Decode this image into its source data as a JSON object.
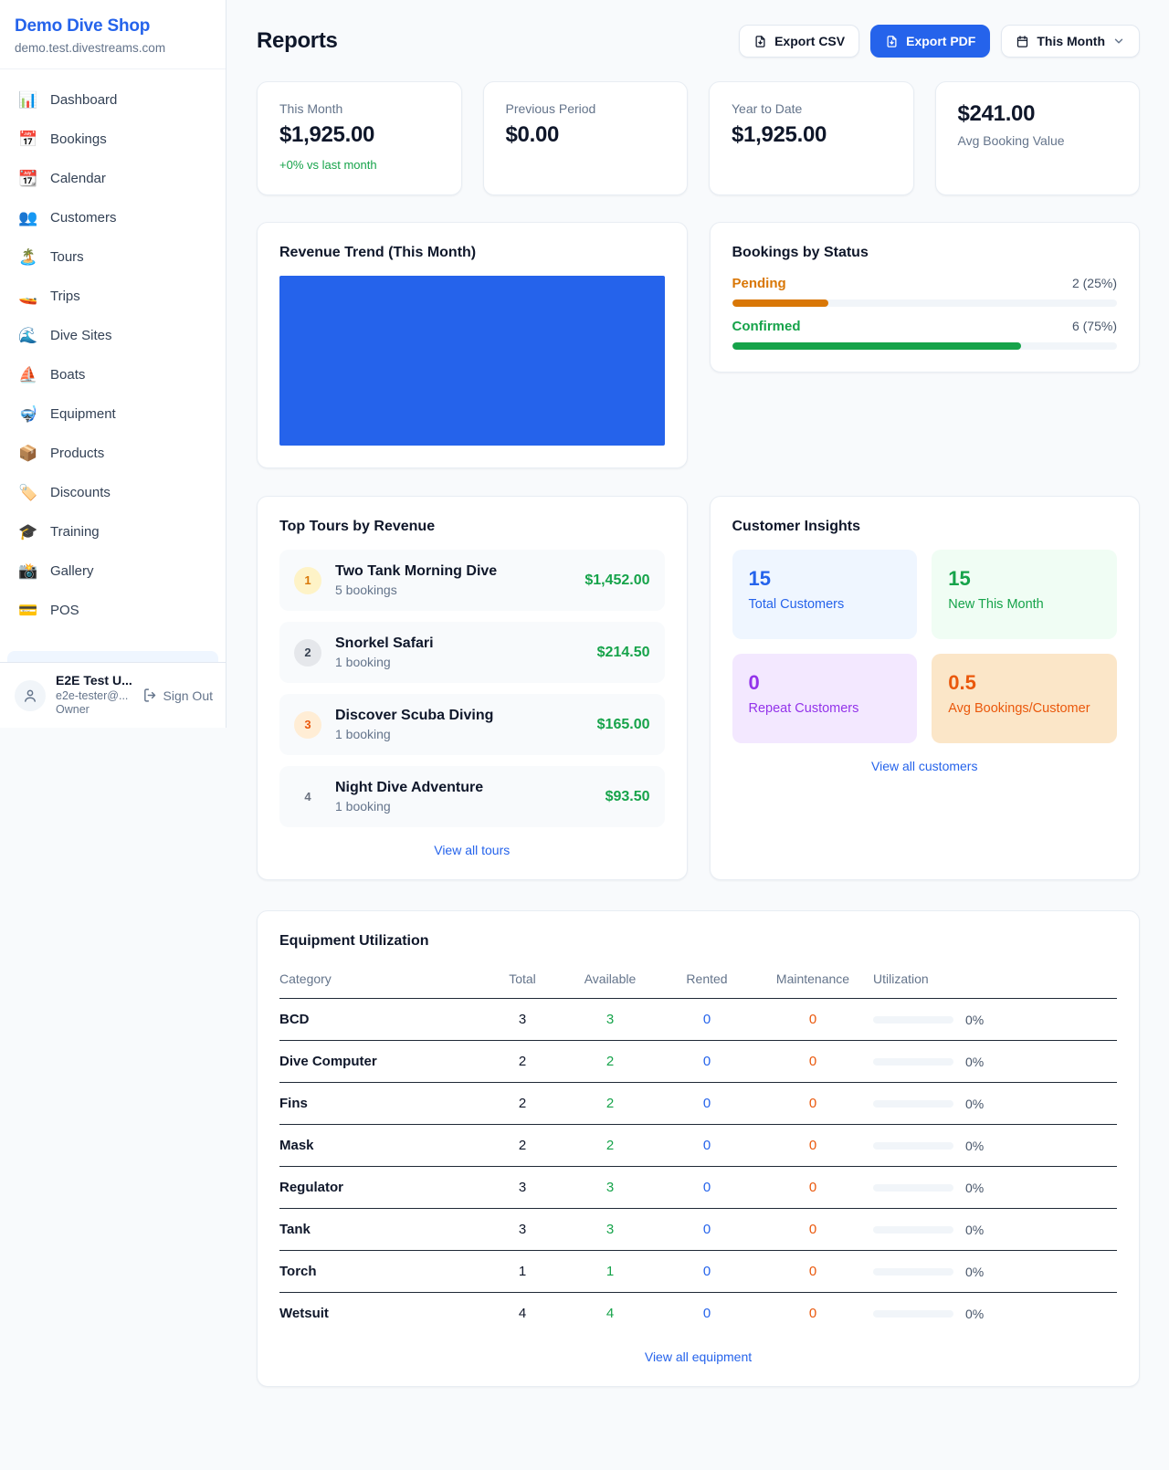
{
  "colors": {
    "accent_blue": "#2563eb",
    "green": "#16a34a",
    "amber": "#d97706",
    "deep_orange": "#ea580c",
    "purple": "#9333ea"
  },
  "sidebar": {
    "shop_name": "Demo Dive Shop",
    "shop_domain": "demo.test.divestreams.com",
    "items": [
      {
        "icon": "📊",
        "label": "Dashboard"
      },
      {
        "icon": "📅",
        "label": "Bookings"
      },
      {
        "icon": "📆",
        "label": "Calendar"
      },
      {
        "icon": "👥",
        "label": "Customers"
      },
      {
        "icon": "🏝️",
        "label": "Tours"
      },
      {
        "icon": "🚤",
        "label": "Trips"
      },
      {
        "icon": "🌊",
        "label": "Dive Sites"
      },
      {
        "icon": "⛵",
        "label": "Boats"
      },
      {
        "icon": "🤿",
        "label": "Equipment"
      },
      {
        "icon": "📦",
        "label": "Products"
      },
      {
        "icon": "🏷️",
        "label": "Discounts"
      },
      {
        "icon": "🎓",
        "label": "Training"
      },
      {
        "icon": "📸",
        "label": "Gallery"
      },
      {
        "icon": "💳",
        "label": "POS"
      }
    ],
    "user": {
      "name": "E2E Test U...",
      "email": "e2e-tester@...",
      "role": "Owner",
      "sign_out_label": "Sign Out"
    }
  },
  "header": {
    "title": "Reports",
    "export_csv_label": "Export CSV",
    "export_pdf_label": "Export PDF",
    "period_label": "This Month"
  },
  "stats": [
    {
      "label": "This Month",
      "value": "$1,925.00",
      "delta": "+0% vs last month",
      "layout": "label-first"
    },
    {
      "label": "Previous Period",
      "value": "$0.00",
      "layout": "label-first"
    },
    {
      "label": "Year to Date",
      "value": "$1,925.00",
      "layout": "label-first"
    },
    {
      "label": "Avg Booking Value",
      "value": "$241.00",
      "layout": "value-first"
    }
  ],
  "revenue_trend": {
    "title": "Revenue Trend (This Month)",
    "fill_color": "#2563eb"
  },
  "bookings_status": {
    "title": "Bookings by Status",
    "rows": [
      {
        "label": "Pending",
        "count_text": "2 (25%)",
        "pct": 25,
        "color": "#d97706"
      },
      {
        "label": "Confirmed",
        "count_text": "6 (75%)",
        "pct": 75,
        "color": "#16a34a"
      }
    ]
  },
  "top_tours": {
    "title": "Top Tours by Revenue",
    "link_label": "View all tours",
    "rows": [
      {
        "rank": "1",
        "name": "Two Tank Morning Dive",
        "bookings": "5 bookings",
        "amount": "$1,452.00",
        "badge_bg": "#fef3c7",
        "badge_color": "#d97706"
      },
      {
        "rank": "2",
        "name": "Snorkel Safari",
        "bookings": "1 booking",
        "amount": "$214.50",
        "badge_bg": "#e5e7eb",
        "badge_color": "#374151"
      },
      {
        "rank": "3",
        "name": "Discover Scuba Diving",
        "bookings": "1 booking",
        "amount": "$165.00",
        "badge_bg": "#ffedd5",
        "badge_color": "#ea580c"
      },
      {
        "rank": "4",
        "name": "Night Dive Adventure",
        "bookings": "1 booking",
        "amount": "$93.50",
        "badge_bg": "transparent",
        "badge_color": "#6b7280"
      }
    ]
  },
  "customer_insights": {
    "title": "Customer Insights",
    "link_label": "View all customers",
    "tiles": [
      {
        "value": "15",
        "label": "Total Customers",
        "bg": "#eff6ff",
        "color": "#2563eb"
      },
      {
        "value": "15",
        "label": "New This Month",
        "bg": "#f0fdf4",
        "color": "#16a34a"
      },
      {
        "value": "0",
        "label": "Repeat Customers",
        "bg": "#f3e8ff",
        "color": "#9333ea"
      },
      {
        "value": "0.5",
        "label": "Avg Bookings/Customer",
        "bg": "#fbe6c8",
        "color": "#ea580c"
      }
    ]
  },
  "equipment": {
    "title": "Equipment Utilization",
    "link_label": "View all equipment",
    "columns": [
      "Category",
      "Total",
      "Available",
      "Rented",
      "Maintenance",
      "Utilization"
    ],
    "rows": [
      {
        "category": "BCD",
        "total": "3",
        "available": "3",
        "rented": "0",
        "maintenance": "0",
        "utilization": "0%"
      },
      {
        "category": "Dive Computer",
        "total": "2",
        "available": "2",
        "rented": "0",
        "maintenance": "0",
        "utilization": "0%"
      },
      {
        "category": "Fins",
        "total": "2",
        "available": "2",
        "rented": "0",
        "maintenance": "0",
        "utilization": "0%"
      },
      {
        "category": "Mask",
        "total": "2",
        "available": "2",
        "rented": "0",
        "maintenance": "0",
        "utilization": "0%"
      },
      {
        "category": "Regulator",
        "total": "3",
        "available": "3",
        "rented": "0",
        "maintenance": "0",
        "utilization": "0%"
      },
      {
        "category": "Tank",
        "total": "3",
        "available": "3",
        "rented": "0",
        "maintenance": "0",
        "utilization": "0%"
      },
      {
        "category": "Torch",
        "total": "1",
        "available": "1",
        "rented": "0",
        "maintenance": "0",
        "utilization": "0%"
      },
      {
        "category": "Wetsuit",
        "total": "4",
        "available": "4",
        "rented": "0",
        "maintenance": "0",
        "utilization": "0%"
      }
    ]
  },
  "chart_data": [
    {
      "type": "area",
      "title": "Revenue Trend (This Month)",
      "series": [
        {
          "name": "Revenue",
          "total": 1925.0
        }
      ],
      "fill_color": "#2563eb",
      "appearance": "renders as a single solid filled block with no visible axes, ticks or labels"
    },
    {
      "type": "bar",
      "orientation": "horizontal",
      "title": "Bookings by Status",
      "categories": [
        "Pending",
        "Confirmed"
      ],
      "values": [
        2,
        6
      ],
      "percentages": [
        25,
        75
      ],
      "colors": [
        "#d97706",
        "#16a34a"
      ]
    }
  ]
}
